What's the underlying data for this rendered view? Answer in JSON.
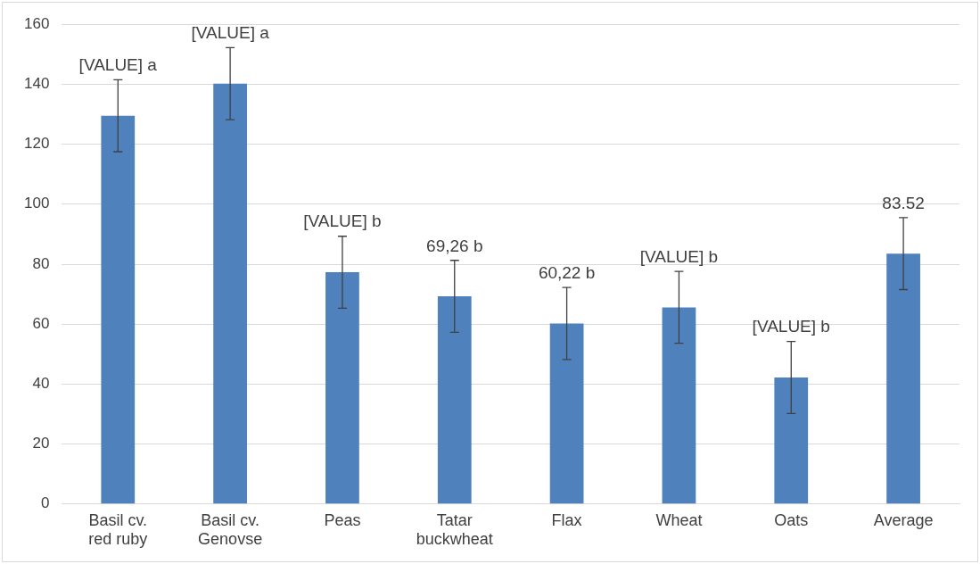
{
  "chart_data": {
    "type": "bar",
    "categories": [
      "Basil cv. red ruby",
      "Basil cv. Genovse",
      "Peas",
      "Tatar buckwheat",
      "Flax",
      "Wheat",
      "Oats",
      "Average"
    ],
    "values": [
      129.5,
      140.2,
      77.3,
      69.26,
      60.22,
      65.6,
      42.2,
      83.52
    ],
    "errors": [
      12,
      12,
      12,
      12,
      12,
      12,
      12,
      12
    ],
    "value_labels": [
      "[VALUE] a",
      "[VALUE] a",
      "[VALUE] b",
      "69,26 b",
      "60,22 b",
      "[VALUE] b",
      "[VALUE] b",
      "83.52"
    ],
    "color": "#4f81bd",
    "ylim": [
      0,
      160
    ],
    "yticks": [
      0,
      20,
      40,
      60,
      80,
      100,
      120,
      140,
      160
    ],
    "grid": "y",
    "legend": false
  }
}
